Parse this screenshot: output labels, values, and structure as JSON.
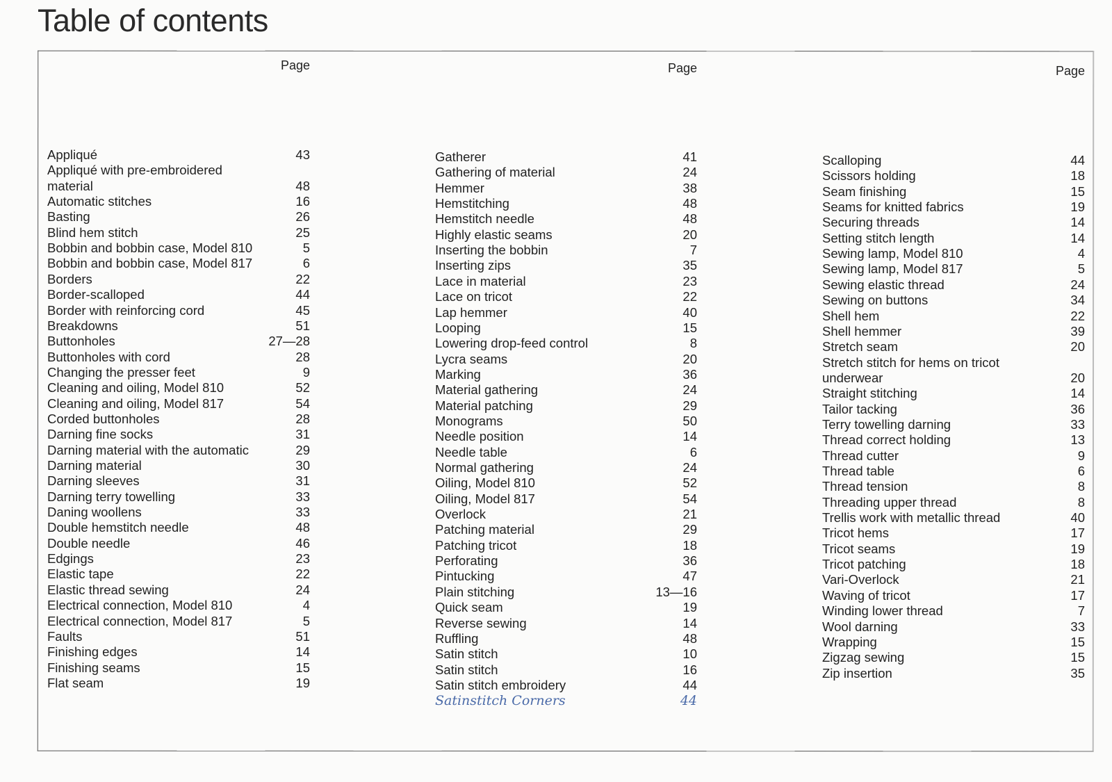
{
  "title": "Table of contents",
  "columns": [
    {
      "page_header": "Page",
      "entries": [
        {
          "t": "Appliqué",
          "p": "43"
        },
        {
          "t": "Appliqué with pre-embroidered",
          "p": ""
        },
        {
          "t": "material",
          "p": "48"
        },
        {
          "t": "Automatic stitches",
          "p": "16"
        },
        {
          "t": "Basting",
          "p": "26"
        },
        {
          "t": "Blind hem stitch",
          "p": "25"
        },
        {
          "t": "Bobbin and bobbin case, Model 810",
          "p": "5"
        },
        {
          "t": "Bobbin and bobbin case, Model 817",
          "p": "6"
        },
        {
          "t": "Borders",
          "p": "22"
        },
        {
          "t": "Border-scalloped",
          "p": "44"
        },
        {
          "t": "Border with reinforcing cord",
          "p": "45"
        },
        {
          "t": "Breakdowns",
          "p": "51"
        },
        {
          "t": "Buttonholes",
          "p": "27—28"
        },
        {
          "t": "Buttonholes with cord",
          "p": "28"
        },
        {
          "t": "Changing the presser feet",
          "p": "9"
        },
        {
          "t": "Cleaning and oiling, Model 810",
          "p": "52"
        },
        {
          "t": "Cleaning and oiling, Model 817",
          "p": "54"
        },
        {
          "t": "Corded buttonholes",
          "p": "28"
        },
        {
          "t": "Darning fine socks",
          "p": "31"
        },
        {
          "t": "Darning material with the automatic",
          "p": "29"
        },
        {
          "t": "Darning material",
          "p": "30"
        },
        {
          "t": "Darning sleeves",
          "p": "31"
        },
        {
          "t": "Darning terry towelling",
          "p": "33"
        },
        {
          "t": "Daning woollens",
          "p": "33"
        },
        {
          "t": "Double hemstitch needle",
          "p": "48"
        },
        {
          "t": "Double needle",
          "p": "46"
        },
        {
          "t": "Edgings",
          "p": "23"
        },
        {
          "t": "Elastic tape",
          "p": "22"
        },
        {
          "t": "Elastic thread sewing",
          "p": "24"
        },
        {
          "t": "Electrical connection, Model 810",
          "p": "4"
        },
        {
          "t": "Electrical connection, Model 817",
          "p": "5"
        },
        {
          "t": "Faults",
          "p": "51"
        },
        {
          "t": "Finishing edges",
          "p": "14"
        },
        {
          "t": "Finishing seams",
          "p": "15"
        },
        {
          "t": "Flat seam",
          "p": "19"
        }
      ]
    },
    {
      "page_header": "Page",
      "entries": [
        {
          "t": "Gatherer",
          "p": "41"
        },
        {
          "t": "Gathering of material",
          "p": "24"
        },
        {
          "t": "Hemmer",
          "p": "38"
        },
        {
          "t": "Hemstitching",
          "p": "48"
        },
        {
          "t": "Hemstitch needle",
          "p": "48"
        },
        {
          "t": "Highly elastic seams",
          "p": "20"
        },
        {
          "t": "Inserting the bobbin",
          "p": "7"
        },
        {
          "t": "Inserting zips",
          "p": "35"
        },
        {
          "t": "Lace in material",
          "p": "23"
        },
        {
          "t": "Lace on tricot",
          "p": "22"
        },
        {
          "t": "Lap hemmer",
          "p": "40"
        },
        {
          "t": "Looping",
          "p": "15"
        },
        {
          "t": "Lowering drop-feed control",
          "p": "8"
        },
        {
          "t": "Lycra seams",
          "p": "20"
        },
        {
          "t": "Marking",
          "p": "36"
        },
        {
          "t": "Material gathering",
          "p": "24"
        },
        {
          "t": "Material patching",
          "p": "29"
        },
        {
          "t": "Monograms",
          "p": "50"
        },
        {
          "t": "Needle position",
          "p": "14"
        },
        {
          "t": "Needle table",
          "p": "6"
        },
        {
          "t": "Normal gathering",
          "p": "24"
        },
        {
          "t": "Oiling, Model 810",
          "p": "52"
        },
        {
          "t": "Oiling, Model 817",
          "p": "54"
        },
        {
          "t": "Overlock",
          "p": "21"
        },
        {
          "t": "Patching material",
          "p": "29"
        },
        {
          "t": "Patching tricot",
          "p": "18"
        },
        {
          "t": "Perforating",
          "p": "36"
        },
        {
          "t": "Pintucking",
          "p": "47"
        },
        {
          "t": "Plain stitching",
          "p": "13—16"
        },
        {
          "t": "Quick seam",
          "p": "19"
        },
        {
          "t": "Reverse sewing",
          "p": "14"
        },
        {
          "t": "Ruffling",
          "p": "48"
        },
        {
          "t": "Satin stitch",
          "p": "10"
        },
        {
          "t": "Satin stitch",
          "p": "16"
        },
        {
          "t": "Satin stitch embroidery",
          "p": "44"
        },
        {
          "t": "Satinstitch Corners",
          "p": "44",
          "handwritten": true
        }
      ]
    },
    {
      "page_header": "Page",
      "entries": [
        {
          "t": "Scalloping",
          "p": "44"
        },
        {
          "t": "Scissors holding",
          "p": "18"
        },
        {
          "t": "Seam finishing",
          "p": "15"
        },
        {
          "t": "Seams for knitted fabrics",
          "p": "19"
        },
        {
          "t": "Securing threads",
          "p": "14"
        },
        {
          "t": "Setting stitch length",
          "p": "14"
        },
        {
          "t": "Sewing lamp, Model 810",
          "p": "4"
        },
        {
          "t": "Sewing lamp, Model 817",
          "p": "5"
        },
        {
          "t": "Sewing elastic thread",
          "p": "24"
        },
        {
          "t": "Sewing on buttons",
          "p": "34"
        },
        {
          "t": "Shell hem",
          "p": "22"
        },
        {
          "t": "Shell hemmer",
          "p": "39"
        },
        {
          "t": "Stretch seam",
          "p": "20"
        },
        {
          "t": "Stretch stitch for hems on tricot",
          "p": ""
        },
        {
          "t": "underwear",
          "p": "20"
        },
        {
          "t": "Straight stitching",
          "p": "14"
        },
        {
          "t": "Tailor tacking",
          "p": "36"
        },
        {
          "t": "Terry towelling darning",
          "p": "33"
        },
        {
          "t": "Thread correct holding",
          "p": "13"
        },
        {
          "t": "Thread cutter",
          "p": "9"
        },
        {
          "t": "Thread table",
          "p": "6"
        },
        {
          "t": "Thread tension",
          "p": "8"
        },
        {
          "t": "Threading upper thread",
          "p": "8"
        },
        {
          "t": "Trellis work with metallic thread",
          "p": "40"
        },
        {
          "t": "Tricot hems",
          "p": "17"
        },
        {
          "t": "Tricot seams",
          "p": "19"
        },
        {
          "t": "Tricot patching",
          "p": "18"
        },
        {
          "t": "Vari-Overlock",
          "p": "21"
        },
        {
          "t": "Waving of tricot",
          "p": "17"
        },
        {
          "t": "Winding lower thread",
          "p": "7"
        },
        {
          "t": "Wool darning",
          "p": "33"
        },
        {
          "t": "Wrapping",
          "p": "15"
        },
        {
          "t": "Zigzag sewing",
          "p": "15"
        },
        {
          "t": "Zip insertion",
          "p": "35"
        }
      ]
    }
  ]
}
